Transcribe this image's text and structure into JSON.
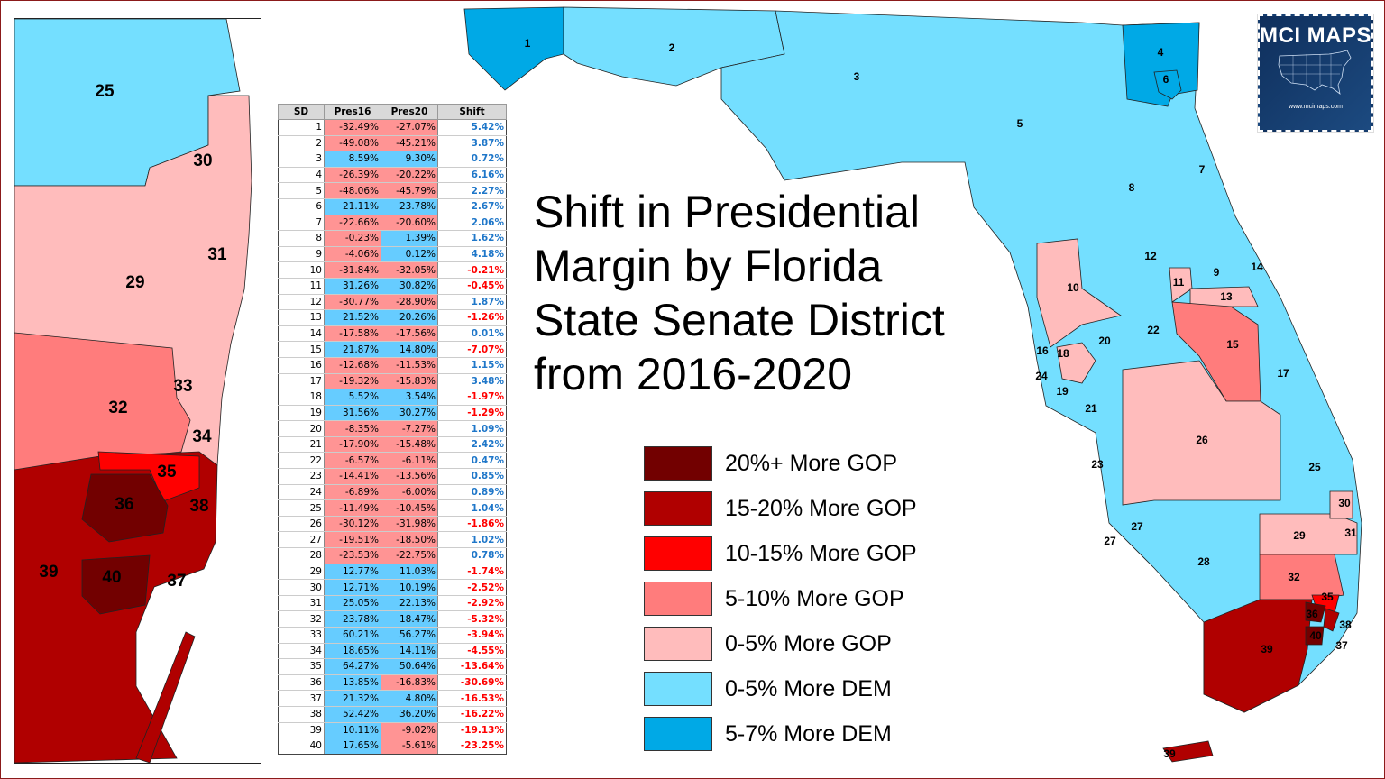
{
  "title": [
    "Shift in Presidential",
    "Margin by Florida",
    "State Senate District",
    "from 2016-2020"
  ],
  "colors": {
    "gop20plus": "#720000",
    "gop15_20": "#b00000",
    "gop10_15": "#ff0000",
    "gop5_10": "#ff7c7c",
    "gop0_5": "#ffbcbc",
    "dem0_5": "#74dfff",
    "dem5_7": "#00a9e6"
  },
  "legend": [
    {
      "label": "20%+ More GOP",
      "color": "#720000"
    },
    {
      "label": "15-20% More GOP",
      "color": "#b00000"
    },
    {
      "label": "10-15% More GOP",
      "color": "#ff0000"
    },
    {
      "label": "5-10% More GOP",
      "color": "#ff7c7c"
    },
    {
      "label": "0-5% More GOP",
      "color": "#ffbcbc"
    },
    {
      "label": "0-5% More DEM",
      "color": "#74dfff"
    },
    {
      "label": "5-7% More DEM",
      "color": "#00a9e6"
    }
  ],
  "logo": {
    "name": "MCI MAPS",
    "url": "www.mcimaps.com"
  },
  "table": {
    "headers": [
      "SD",
      "Pres16",
      "Pres20",
      "Shift"
    ],
    "rows": [
      [
        "1",
        "-32.49%",
        "-27.07%",
        "5.42%"
      ],
      [
        "2",
        "-49.08%",
        "-45.21%",
        "3.87%"
      ],
      [
        "3",
        "8.59%",
        "9.30%",
        "0.72%"
      ],
      [
        "4",
        "-26.39%",
        "-20.22%",
        "6.16%"
      ],
      [
        "5",
        "-48.06%",
        "-45.79%",
        "2.27%"
      ],
      [
        "6",
        "21.11%",
        "23.78%",
        "2.67%"
      ],
      [
        "7",
        "-22.66%",
        "-20.60%",
        "2.06%"
      ],
      [
        "8",
        "-0.23%",
        "1.39%",
        "1.62%"
      ],
      [
        "9",
        "-4.06%",
        "0.12%",
        "4.18%"
      ],
      [
        "10",
        "-31.84%",
        "-32.05%",
        "-0.21%"
      ],
      [
        "11",
        "31.26%",
        "30.82%",
        "-0.45%"
      ],
      [
        "12",
        "-30.77%",
        "-28.90%",
        "1.87%"
      ],
      [
        "13",
        "21.52%",
        "20.26%",
        "-1.26%"
      ],
      [
        "14",
        "-17.58%",
        "-17.56%",
        "0.01%"
      ],
      [
        "15",
        "21.87%",
        "14.80%",
        "-7.07%"
      ],
      [
        "16",
        "-12.68%",
        "-11.53%",
        "1.15%"
      ],
      [
        "17",
        "-19.32%",
        "-15.83%",
        "3.48%"
      ],
      [
        "18",
        "5.52%",
        "3.54%",
        "-1.97%"
      ],
      [
        "19",
        "31.56%",
        "30.27%",
        "-1.29%"
      ],
      [
        "20",
        "-8.35%",
        "-7.27%",
        "1.09%"
      ],
      [
        "21",
        "-17.90%",
        "-15.48%",
        "2.42%"
      ],
      [
        "22",
        "-6.57%",
        "-6.11%",
        "0.47%"
      ],
      [
        "23",
        "-14.41%",
        "-13.56%",
        "0.85%"
      ],
      [
        "24",
        "-6.89%",
        "-6.00%",
        "0.89%"
      ],
      [
        "25",
        "-11.49%",
        "-10.45%",
        "1.04%"
      ],
      [
        "26",
        "-30.12%",
        "-31.98%",
        "-1.86%"
      ],
      [
        "27",
        "-19.51%",
        "-18.50%",
        "1.02%"
      ],
      [
        "28",
        "-23.53%",
        "-22.75%",
        "0.78%"
      ],
      [
        "29",
        "12.77%",
        "11.03%",
        "-1.74%"
      ],
      [
        "30",
        "12.71%",
        "10.19%",
        "-2.52%"
      ],
      [
        "31",
        "25.05%",
        "22.13%",
        "-2.92%"
      ],
      [
        "32",
        "23.78%",
        "18.47%",
        "-5.32%"
      ],
      [
        "33",
        "60.21%",
        "56.27%",
        "-3.94%"
      ],
      [
        "34",
        "18.65%",
        "14.11%",
        "-4.55%"
      ],
      [
        "35",
        "64.27%",
        "50.64%",
        "-13.64%"
      ],
      [
        "36",
        "13.85%",
        "-16.83%",
        "-30.69%"
      ],
      [
        "37",
        "21.32%",
        "4.80%",
        "-16.53%"
      ],
      [
        "38",
        "52.42%",
        "36.20%",
        "-16.22%"
      ],
      [
        "39",
        "10.11%",
        "-9.02%",
        "-19.13%"
      ],
      [
        "40",
        "17.65%",
        "-5.61%",
        "-23.25%"
      ]
    ]
  },
  "main_map_labels": [
    "1",
    "2",
    "3",
    "4",
    "5",
    "6",
    "7",
    "8",
    "9",
    "10",
    "11",
    "12",
    "13",
    "14",
    "15",
    "16",
    "17",
    "18",
    "19",
    "20",
    "21",
    "22",
    "23",
    "24",
    "25",
    "26",
    "27",
    "27",
    "28",
    "29",
    "30",
    "31",
    "32",
    "35",
    "36",
    "37",
    "38",
    "39",
    "40",
    "39"
  ],
  "inset_map_labels": [
    "25",
    "30",
    "31",
    "29",
    "33",
    "32",
    "34",
    "35",
    "36",
    "38",
    "39",
    "40",
    "37"
  ]
}
